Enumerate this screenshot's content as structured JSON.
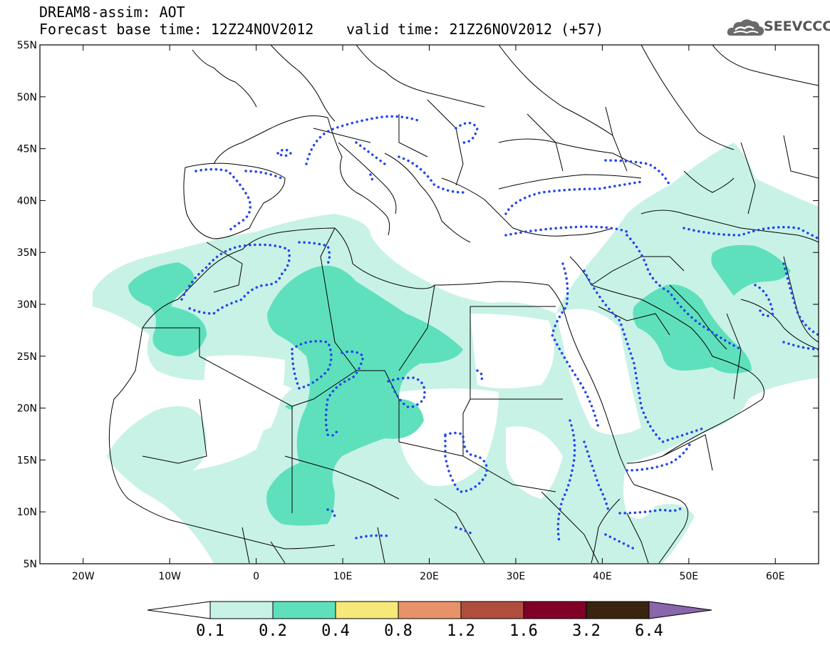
{
  "header": {
    "line1": "DREAM8-assim: AOT",
    "line2_left": "Forecast base time: 12Z24NOV2012",
    "line2_right": "valid time: 21Z26NOV2012 (+57)"
  },
  "logo": {
    "text": "SEEVCCC",
    "icon": "cloud-icon"
  },
  "map": {
    "lon_range": [
      -25,
      65
    ],
    "lat_range": [
      5,
      55
    ],
    "lat_ticks": [
      "55N",
      "50N",
      "45N",
      "40N",
      "35N",
      "30N",
      "25N",
      "20N",
      "15N",
      "10N",
      "5N"
    ],
    "lon_ticks": [
      "20W",
      "10W",
      "0",
      "10E",
      "20E",
      "30E",
      "40E",
      "50E",
      "60E"
    ],
    "fill_colors": {
      "level_0_1": "#c8f2e6",
      "level_0_2": "#5fe0bc"
    },
    "contour_color": "#2244ee",
    "coast_color": "#000000"
  },
  "colorbar": {
    "labels": [
      "0.1",
      "0.2",
      "0.4",
      "0.8",
      "1.2",
      "1.6",
      "3.2",
      "6.4"
    ],
    "colors": [
      "#c8f2e6",
      "#5fe0bc",
      "#f5e97a",
      "#e8926a",
      "#b04e3e",
      "#800028",
      "#3a2410",
      "#8a66aa"
    ],
    "under_color": "#ffffff",
    "over_color": "#8a66aa"
  }
}
